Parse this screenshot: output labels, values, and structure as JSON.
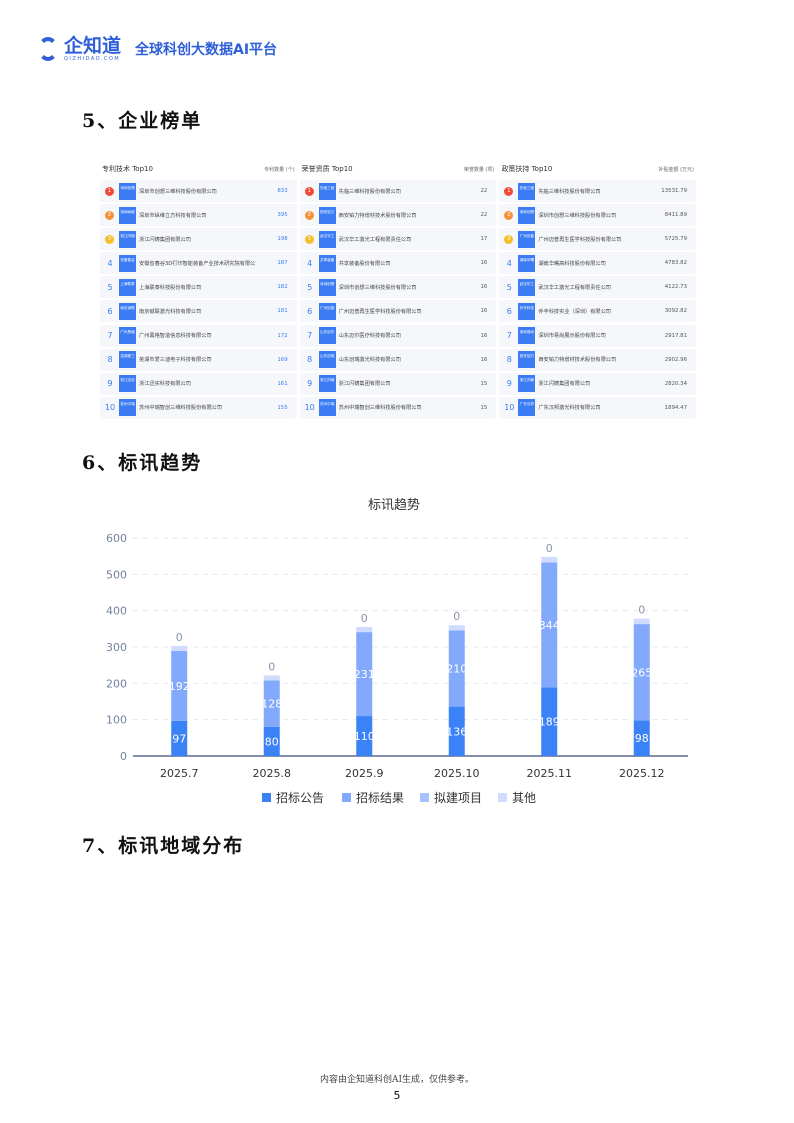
{
  "header": {
    "brand": "企知道",
    "brand_sub": "QIZHIDAO.COM",
    "slogan": "全球科创大数据AI平台"
  },
  "sections": {
    "s5": "5、企业榜单",
    "s6": "6、标讯趋势",
    "s7": "7、标讯地域分布"
  },
  "tables": [
    {
      "title": "专利技术 Top10",
      "unit": "专利数量 (个)",
      "rows": [
        {
          "rank": "1",
          "abbr": "深圳创想",
          "name": "深圳市创想三维科技股份有限公司",
          "value": "833"
        },
        {
          "rank": "2",
          "abbr": "深圳纵维",
          "name": "深圳市纵维立方科技有限公司",
          "value": "395"
        },
        {
          "rank": "3",
          "abbr": "浙江闪铸",
          "name": "浙江闪铸集团有限公司",
          "value": "198"
        },
        {
          "rank": "4",
          "abbr": "安徽春谷",
          "name": "安徽省春谷3D打印智能装备产业技术研究院有限公司",
          "value": "187"
        },
        {
          "rank": "5",
          "abbr": "上海联泰",
          "name": "上海联泰科技股份有限公司",
          "value": "182"
        },
        {
          "rank": "6",
          "abbr": "南京铖联",
          "name": "南京铖联激光科技有限公司",
          "value": "181"
        },
        {
          "rank": "7",
          "abbr": "广州黑格",
          "name": "广州黑格智造信息科技有限公司",
          "value": "172"
        },
        {
          "rank": "8",
          "abbr": "芜湖爱三",
          "name": "芜湖市爱三迪电子科技有限公司",
          "value": "169"
        },
        {
          "rank": "9",
          "abbr": "浙江迅实",
          "name": "浙江迅实科技有限公司",
          "value": "161"
        },
        {
          "rank": "10",
          "abbr": "苏州中瑞",
          "name": "苏州中瑞智创三维科技股份有限公司",
          "value": "155"
        }
      ]
    },
    {
      "title": "荣誉资质 Top10",
      "unit": "荣誉数量 (项)",
      "rows": [
        {
          "rank": "1",
          "abbr": "先临三维",
          "name": "先临三维科技股份有限公司",
          "value": "22"
        },
        {
          "rank": "2",
          "abbr": "西安铂力",
          "name": "西安铂力特增材技术股份有限公司",
          "value": "22"
        },
        {
          "rank": "3",
          "abbr": "武汉华工",
          "name": "武汉华工激光工程有限责任公司",
          "value": "17"
        },
        {
          "rank": "4",
          "abbr": "共享装备",
          "name": "共享装备股份有限公司",
          "value": "16"
        },
        {
          "rank": "5",
          "abbr": "深圳创想",
          "name": "深圳市创想三维科技股份有限公司",
          "value": "16"
        },
        {
          "rank": "6",
          "abbr": "广州迈普",
          "name": "广州迈普再生医学科技股份有限公司",
          "value": "16"
        },
        {
          "rank": "7",
          "abbr": "山东迈尔",
          "name": "山东迈尔医疗科技有限公司",
          "value": "16"
        },
        {
          "rank": "8",
          "abbr": "山东创瑞",
          "name": "山东创瑞激光科技有限公司",
          "value": "16"
        },
        {
          "rank": "9",
          "abbr": "浙江闪铸",
          "name": "浙江闪铸集团有限公司",
          "value": "15"
        },
        {
          "rank": "10",
          "abbr": "苏州中瑞",
          "name": "苏州中瑞智创三维科技股份有限公司",
          "value": "15"
        }
      ]
    },
    {
      "title": "政策扶持 Top10",
      "unit": "补贴金额 (万元)",
      "rows": [
        {
          "rank": "1",
          "abbr": "先临三维",
          "name": "先临三维科技股份有限公司",
          "value": "13531.79"
        },
        {
          "rank": "2",
          "abbr": "深圳创想",
          "name": "深圳市创想三维科技股份有限公司",
          "value": "8411.89"
        },
        {
          "rank": "3",
          "abbr": "广州迈普",
          "name": "广州迈普再生医学科技股份有限公司",
          "value": "5725.79"
        },
        {
          "rank": "4",
          "abbr": "湖南华曙",
          "name": "湖南华曙高科技股份有限公司",
          "value": "4783.82"
        },
        {
          "rank": "5",
          "abbr": "武汉华工",
          "name": "武汉华工激光工程有限责任公司",
          "value": "4122.73"
        },
        {
          "rank": "6",
          "abbr": "乔丰科技",
          "name": "乔丰科技实业（深圳）有限公司",
          "value": "3092.82"
        },
        {
          "rank": "7",
          "abbr": "深圳易尚",
          "name": "深圳市易尚展示股份有限公司",
          "value": "2917.81"
        },
        {
          "rank": "8",
          "abbr": "西安铂力",
          "name": "西安铂力特增材技术股份有限公司",
          "value": "2902.96"
        },
        {
          "rank": "9",
          "abbr": "浙江闪铸",
          "name": "浙江闪铸集团有限公司",
          "value": "2820.34"
        },
        {
          "rank": "10",
          "abbr": "广东汉邦",
          "name": "广东汉邦激光科技有限公司",
          "value": "1894.47"
        }
      ]
    }
  ],
  "chart_data": {
    "type": "bar",
    "stacked": true,
    "title": "标讯趋势",
    "categories": [
      "2025.7",
      "2025.8",
      "2025.9",
      "2025.10",
      "2025.11",
      "2025.12"
    ],
    "ylim": [
      0,
      600
    ],
    "yticks": [
      0,
      100,
      200,
      300,
      400,
      500,
      600
    ],
    "grid": true,
    "legend": "bottom",
    "series": [
      {
        "name": "招标公告",
        "color": "#3b82f6",
        "values": [
          97,
          80,
          110,
          136,
          189,
          98
        ]
      },
      {
        "name": "招标结果",
        "color": "#82a9fb",
        "values": [
          192,
          128,
          231,
          210,
          344,
          265
        ]
      },
      {
        "name": "拟建项目",
        "color": "#a8c3fc",
        "values": [
          0,
          0,
          0,
          0,
          0,
          0
        ]
      },
      {
        "name": "其他",
        "color": "#cfdcfd",
        "values": [
          14,
          14,
          14,
          14,
          15,
          15
        ]
      }
    ]
  },
  "footer": {
    "note": "内容由企知道科创AI生成，仅供参考。",
    "page": "5"
  }
}
